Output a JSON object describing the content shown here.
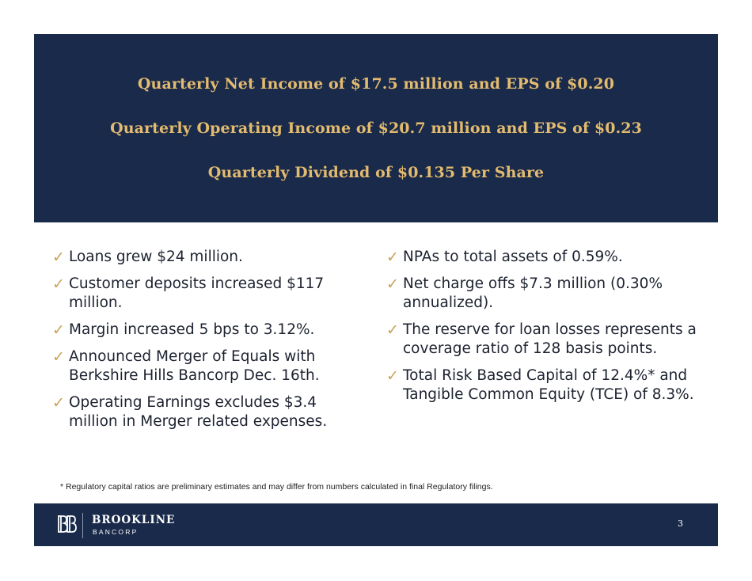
{
  "header": {
    "lines": [
      "Quarterly Net Income of $17.5 million and EPS of $0.20",
      "Quarterly Operating Income of $20.7 million and EPS of $0.23",
      "Quarterly Dividend of $0.135 Per Share"
    ]
  },
  "bullets": {
    "check_symbol": "✓",
    "left": [
      "Loans grew $24 million.",
      "Customer deposits increased $117 million.",
      "Margin increased 5 bps to 3.12%.",
      "Announced Merger of Equals with Berkshire Hills Bancorp Dec. 16th.",
      "Operating Earnings excludes $3.4 million in Merger related expenses."
    ],
    "right": [
      "NPAs to total assets of 0.59%.",
      "Net charge offs $7.3 million (0.30% annualized).",
      "The reserve for loan losses represents a coverage ratio of 128 basis points.",
      "Total Risk Based Capital of 12.4%* and Tangible Common Equity (TCE) of 8.3%."
    ]
  },
  "footnote": "* Regulatory capital ratios are preliminary estimates and may differ from numbers calculated in final Regulatory filings.",
  "footer": {
    "logo_name": "BROOKLINE",
    "logo_sub": "BANCORP",
    "page_number": "3"
  },
  "colors": {
    "navy": "#1a2a4a",
    "gold": "#e3bb6f",
    "check": "#c9a258"
  }
}
